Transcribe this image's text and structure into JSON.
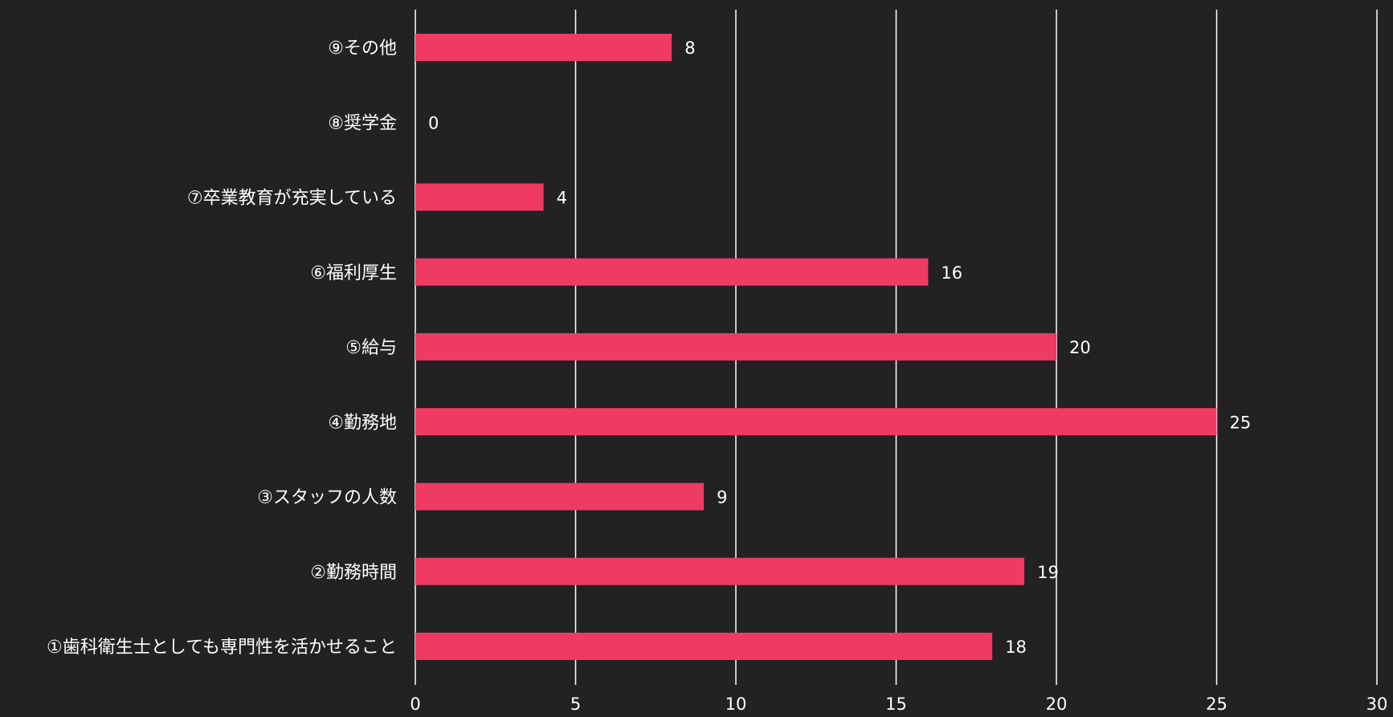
{
  "chart_data": {
    "type": "bar",
    "orientation": "horizontal",
    "title": "",
    "xlabel": "",
    "ylabel": "",
    "categories": [
      "①歯科衛生士としても専門性を活かせること",
      "②勤務時間",
      "③スタッフの人数",
      "④勤務地",
      "⑤給与",
      "⑥福利厚生",
      "⑦卒業教育が充実している",
      "⑧奨学金",
      "⑨その他"
    ],
    "values": [
      18,
      19,
      9,
      25,
      20,
      16,
      4,
      0,
      8
    ],
    "xlim": [
      0,
      30
    ],
    "xticks": [
      0,
      5,
      10,
      15,
      20,
      25,
      30
    ],
    "grid": "vertical",
    "legend": "none",
    "colors": {
      "background": "#222222",
      "bar": "#EF3A62",
      "grid": "#ffffff",
      "text": "#ffffff"
    }
  }
}
